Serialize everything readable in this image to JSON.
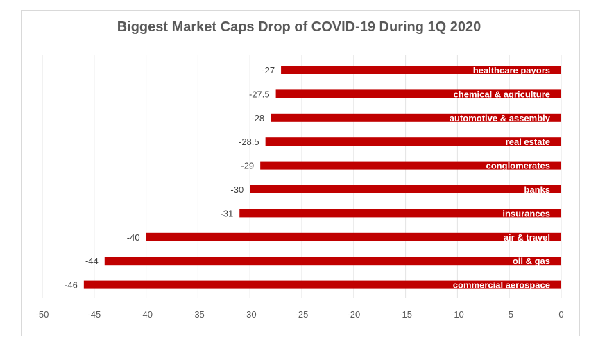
{
  "chart_data": {
    "type": "bar",
    "orientation": "horizontal",
    "title": "Biggest Market Caps Drop of COVID-19 During 1Q 2020",
    "xlabel": "",
    "ylabel": "",
    "xlim": [
      -50,
      0
    ],
    "x_ticks": [
      -50,
      -45,
      -40,
      -35,
      -30,
      -25,
      -20,
      -15,
      -10,
      -5,
      0
    ],
    "grid": true,
    "legend": "none",
    "bar_color": "#C00000",
    "categories": [
      "healthcare payors",
      "chemical & agriculture",
      "automotive & assembly",
      "real estate",
      "conglomerates",
      "banks",
      "insurances",
      "air & travel",
      "oil & gas",
      "commercial aerospace"
    ],
    "values": [
      -27,
      -27.5,
      -28,
      -28.5,
      -29,
      -30,
      -31,
      -40,
      -44,
      -46
    ]
  }
}
